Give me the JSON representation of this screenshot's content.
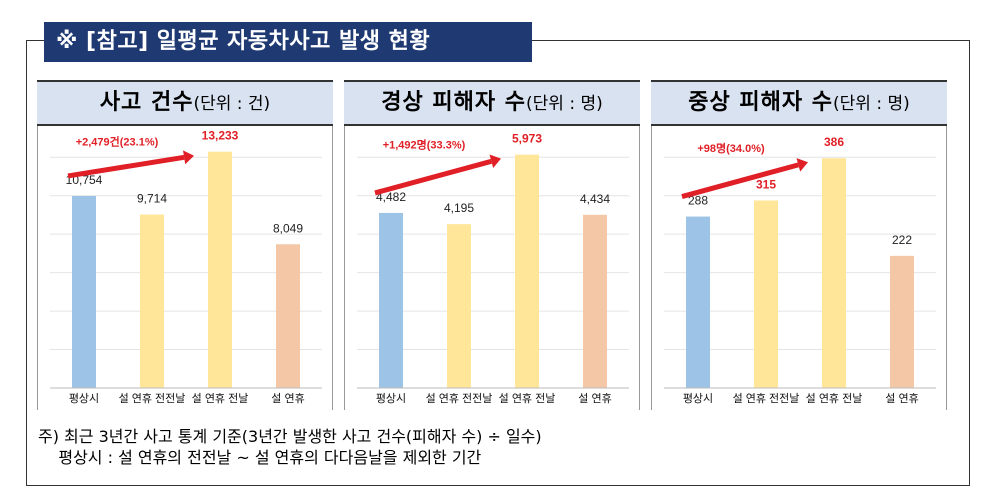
{
  "title": "※ [참고] 일평균 자동차사고 발생 현황",
  "panels": [
    {
      "main": "사고 건수",
      "unit": "(단위 : 건)"
    },
    {
      "main": "경상 피해자 수",
      "unit": "(단위 : 명)"
    },
    {
      "main": "중상 피해자 수",
      "unit": "(단위 : 명)"
    }
  ],
  "footnote": {
    "line1": "주) 최근 3년간 사고 통계 기준(3년간 발생한 사고 건수(피해자 수) ÷ 일수)",
    "line2": "    평상시 : 설 연휴의 전전날 ~ 설 연휴의 다다음날을 제외한 기간"
  },
  "colors": {
    "normal": "#9dc3e6",
    "holiday_eve": "#ffe699",
    "holiday": "#f4c7a6",
    "accent": "#e01f26"
  },
  "chart_data": [
    {
      "type": "bar",
      "categories": [
        "평상시",
        "설 연휴 전전날",
        "설 연휴 전날",
        "설 연휴"
      ],
      "values": [
        10754,
        9714,
        13233,
        8049
      ],
      "value_labels": [
        "10,754",
        "9,714",
        "13,233",
        "8,049"
      ],
      "highlight_index": 2,
      "annotation": "+2,479건(23.1%)",
      "ylim": [
        0,
        14000
      ]
    },
    {
      "type": "bar",
      "categories": [
        "평상시",
        "설 연휴 전전날",
        "설 연휴 전날",
        "설 연휴"
      ],
      "values": [
        4482,
        4195,
        5973,
        4434
      ],
      "value_labels": [
        "4,482",
        "4,195",
        "5,973",
        "4,434"
      ],
      "highlight_index": 2,
      "annotation": "+1,492명(33.3%)",
      "ylim": [
        0,
        6400
      ]
    },
    {
      "type": "bar",
      "categories": [
        "평상시",
        "설 연휴 전전날",
        "설 연휴 전날",
        "설 연휴"
      ],
      "values": [
        288,
        315,
        386,
        222
      ],
      "value_labels": [
        "288",
        "315",
        "386",
        "222"
      ],
      "highlight_indices": [
        1,
        2
      ],
      "annotation": "+98명(34.0%)",
      "ylim": [
        0,
        420
      ]
    }
  ]
}
